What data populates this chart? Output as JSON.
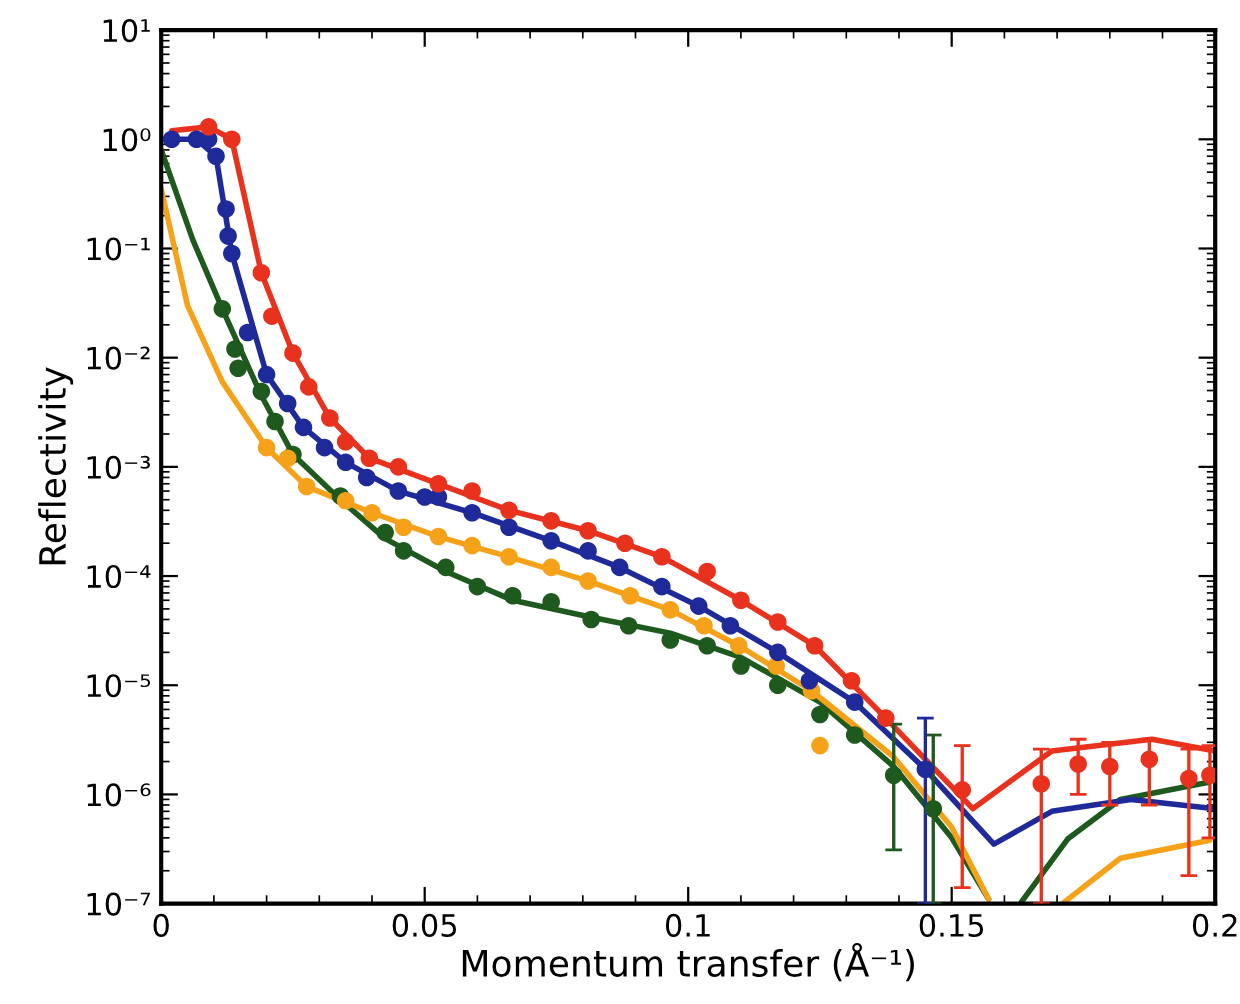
{
  "chart_data": {
    "type": "scatter",
    "xlabel": "Momentum transfer (Å⁻¹)",
    "ylabel": "Reflectivity",
    "log": "y",
    "xlim": [
      0,
      0.2
    ],
    "ylim": [
      1e-07,
      10
    ],
    "xticks": [
      0,
      0.05,
      0.1,
      0.15,
      0.2
    ],
    "yticks": [
      {
        "value": 1e-07,
        "label": "10⁻⁷"
      },
      {
        "value": 1e-06,
        "label": "10⁻⁶"
      },
      {
        "value": 1e-05,
        "label": "10⁻⁵"
      },
      {
        "value": 0.0001,
        "label": "10⁻⁴"
      },
      {
        "value": 0.001,
        "label": "10⁻³"
      },
      {
        "value": 0.01,
        "label": "10⁻²"
      },
      {
        "value": 0.1,
        "label": "10⁻¹"
      },
      {
        "value": 1,
        "label": "10⁰"
      },
      {
        "value": 10,
        "label": "10¹"
      }
    ],
    "grid": false,
    "series": [
      {
        "type": "line",
        "marker": "none",
        "color": "#1e5a1e",
        "x": [
          0,
          0.006,
          0.0116,
          0.019,
          0.025,
          0.034,
          0.0425,
          0.054,
          0.0667,
          0.0816,
          0.0966,
          0.11,
          0.125,
          0.139,
          0.15,
          0.157,
          null,
          0.163,
          0.172,
          0.182,
          0.199
        ],
        "values": [
          0.8,
          0.12,
          0.028,
          0.0045,
          0.0013,
          0.0005,
          0.00022,
          0.00011,
          6e-05,
          4.2e-05,
          3e-05,
          1.8e-05,
          7e-06,
          1.8e-06,
          4e-07,
          1.1e-07,
          null,
          1e-07,
          3.9e-07,
          9e-07,
          1.3e-06
        ]
      },
      {
        "type": "line",
        "marker": "none",
        "color": "#f5a21a",
        "x": [
          0,
          0.005,
          0.0116,
          0.02,
          0.0276,
          0.04,
          0.0526,
          0.066,
          0.081,
          0.0966,
          0.1096,
          0.1234,
          0.139,
          0.15,
          0.157,
          null,
          0.171,
          0.182,
          0.199
        ],
        "values": [
          0.35,
          0.03,
          0.006,
          0.0015,
          0.00066,
          0.00038,
          0.00023,
          0.00015,
          9e-05,
          4.9e-05,
          2.3e-05,
          8.9e-06,
          2.2e-06,
          5e-07,
          1.1e-07,
          null,
          1e-07,
          2.6e-07,
          3.8e-07
        ]
      },
      {
        "type": "line",
        "marker": "none",
        "color": "#1f2a9a",
        "x": [
          0,
          0.0067,
          0.0104,
          0.0134,
          0.02,
          0.027,
          0.035,
          0.045,
          0.059,
          0.074,
          0.087,
          0.102,
          0.117,
          0.1316,
          0.145,
          0.158,
          0.169,
          0.184,
          0.2
        ],
        "values": [
          1.0,
          1.0,
          0.7,
          0.09,
          0.007,
          0.0023,
          0.0011,
          0.0006,
          0.00038,
          0.00021,
          0.00012,
          5.3e-05,
          2e-05,
          7e-06,
          1.7e-06,
          3.5e-07,
          7e-07,
          9e-07,
          7.4e-07
        ]
      },
      {
        "type": "line",
        "marker": "none",
        "color": "#e8321e",
        "x": [
          0.002,
          0.009,
          0.0134,
          0.019,
          0.025,
          0.032,
          0.0395,
          0.0526,
          0.066,
          0.081,
          0.095,
          0.11,
          0.124,
          0.1375,
          0.154,
          0.169,
          0.188,
          0.2
        ],
        "values": [
          1.2,
          1.3,
          1.0,
          0.06,
          0.011,
          0.0028,
          0.0012,
          0.0007,
          0.0004,
          0.00026,
          0.00015,
          6e-05,
          2.3e-05,
          5e-06,
          7.4e-07,
          2.5e-06,
          3.2e-06,
          2.5e-06
        ]
      },
      {
        "marker": "circle",
        "color": "#1e5a1e",
        "x": [
          0.0116,
          0.014,
          0.0146,
          0.019,
          0.0216,
          0.025,
          0.034,
          0.0425,
          0.046,
          0.054,
          0.06,
          0.0667,
          0.074,
          0.0816,
          0.0887,
          0.0966,
          0.1036,
          0.11,
          0.117,
          0.125,
          0.1316,
          0.139,
          0.1465
        ],
        "values": [
          0.028,
          0.012,
          0.008,
          0.0049,
          0.0026,
          0.0013,
          0.00054,
          0.00025,
          0.00017,
          0.00012,
          8e-05,
          6.6e-05,
          5.8e-05,
          4e-05,
          3.5e-05,
          2.6e-05,
          2.3e-05,
          1.5e-05,
          1e-05,
          5.4e-06,
          3.5e-06,
          1.5e-06,
          7.4e-07
        ],
        "errors": [
          null,
          null,
          null,
          null,
          null,
          null,
          null,
          null,
          null,
          null,
          null,
          null,
          null,
          null,
          null,
          null,
          null,
          null,
          null,
          null,
          null,
          [
            3.1e-07,
            4.4e-06
          ],
          [
            1e-07,
            3.5e-06
          ]
        ]
      },
      {
        "marker": "circle",
        "color": "#f5a21a",
        "x": [
          0.02,
          0.024,
          0.0276,
          0.035,
          0.04,
          0.046,
          0.0526,
          0.059,
          0.066,
          0.074,
          0.081,
          0.089,
          0.0966,
          0.103,
          0.1096,
          0.1167,
          0.1234,
          0.125
        ],
        "values": [
          0.0015,
          0.0012,
          0.00066,
          0.00049,
          0.00038,
          0.00028,
          0.00023,
          0.00019,
          0.00015,
          0.00012,
          9e-05,
          6.6e-05,
          4.9e-05,
          3.5e-05,
          2.3e-05,
          1.5e-05,
          8.9e-06,
          2.8e-06
        ]
      },
      {
        "marker": "circle",
        "color": "#1f2a9a",
        "x": [
          0.002,
          0.0067,
          0.009,
          0.0104,
          0.0123,
          0.0127,
          0.0134,
          0.0164,
          0.02,
          0.024,
          0.027,
          0.031,
          0.035,
          0.039,
          0.045,
          0.05,
          0.0526,
          0.059,
          0.066,
          0.074,
          0.081,
          0.087,
          0.095,
          0.102,
          0.108,
          0.117,
          0.123,
          0.1316,
          0.145
        ],
        "values": [
          1.0,
          1.0,
          1.0,
          0.7,
          0.23,
          0.13,
          0.09,
          0.017,
          0.007,
          0.0038,
          0.0023,
          0.0015,
          0.0011,
          0.0008,
          0.0006,
          0.00053,
          0.00053,
          0.00038,
          0.00028,
          0.00021,
          0.00017,
          0.00012,
          8e-05,
          5.3e-05,
          3.5e-05,
          2e-05,
          1.1e-05,
          7e-06,
          1.7e-06
        ],
        "errors": [
          null,
          null,
          null,
          null,
          null,
          null,
          null,
          null,
          null,
          null,
          null,
          null,
          null,
          null,
          null,
          null,
          null,
          null,
          null,
          null,
          null,
          null,
          null,
          null,
          null,
          null,
          null,
          null,
          [
            1e-07,
            5e-06
          ]
        ]
      },
      {
        "marker": "circle",
        "color": "#e8321e",
        "x": [
          0.009,
          0.0134,
          0.019,
          0.021,
          0.025,
          0.028,
          0.032,
          0.035,
          0.0395,
          0.045,
          0.0526,
          0.059,
          0.066,
          0.074,
          0.081,
          0.088,
          0.095,
          0.1036,
          0.11,
          0.117,
          0.124,
          0.131,
          0.1375,
          0.152,
          0.167,
          0.174,
          0.18,
          0.1875,
          0.195,
          0.199
        ],
        "values": [
          1.3,
          1.0,
          0.06,
          0.024,
          0.011,
          0.0054,
          0.0028,
          0.0017,
          0.0012,
          0.001,
          0.0007,
          0.0006,
          0.0004,
          0.00032,
          0.00026,
          0.0002,
          0.00015,
          0.00011,
          6e-05,
          3.8e-05,
          2.3e-05,
          1.1e-05,
          5e-06,
          1.1e-06,
          1.25e-06,
          1.9e-06,
          1.8e-06,
          2.1e-06,
          1.4e-06,
          1.5e-06
        ],
        "errors": [
          null,
          null,
          null,
          null,
          null,
          null,
          null,
          null,
          null,
          null,
          null,
          null,
          null,
          null,
          null,
          null,
          null,
          null,
          null,
          null,
          null,
          null,
          null,
          [
            1.4e-07,
            2.8e-06
          ],
          [
            1e-07,
            2.6e-06
          ],
          [
            1e-06,
            3.2e-06
          ],
          [
            8e-07,
            3e-06
          ],
          [
            8e-07,
            3.2e-06
          ],
          [
            1.8e-07,
            2.6e-06
          ],
          [
            4e-07,
            2.8e-06
          ]
        ]
      }
    ]
  }
}
